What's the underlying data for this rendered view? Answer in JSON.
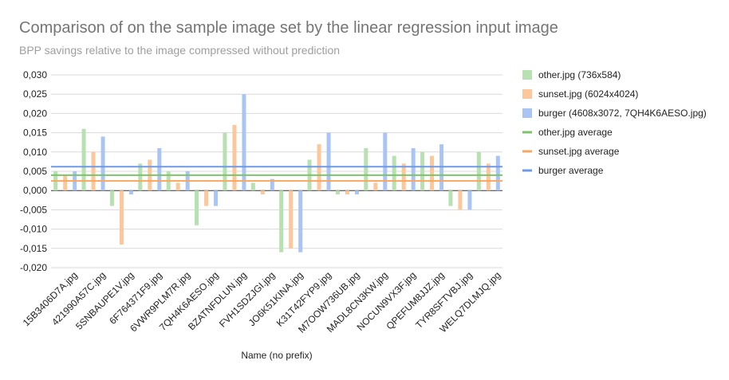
{
  "chart_data": {
    "type": "bar",
    "title": "Comparison of on the sample image set by the linear regression input image",
    "subtitle": "BPP savings relative to the image compressed without prediction",
    "xlabel": "Name (no prefix)",
    "ylabel": "",
    "ylim": [
      -0.02,
      0.03
    ],
    "yticks": [
      "0,030",
      "0,025",
      "0,020",
      "0,015",
      "0,010",
      "0,005",
      "0,000",
      "-0,005",
      "-0,010",
      "-0,015",
      "-0,020"
    ],
    "grid": true,
    "legend_position": "right",
    "categories": [
      "15B3406D7A.jpg",
      "421990A57C.jpg",
      "5SNBAUPE1V.jpg",
      "6F764371F9.jpg",
      "6VWR9PLM7R.jpg",
      "7QH4K6AESO.jpg",
      "BZATNFDLUN.jpg",
      "FVH1SDZJGI.jpg",
      "JO6K51KINA.jpg",
      "K31T42FYP9.jpg",
      "M7OOW736UB.jpg",
      "MADL8CN3KW.jpg",
      "NOCUN9VX3F.jpg",
      "QPEFUM8JJZ.jpg",
      "TYR8SFTVBJ.jpg",
      "WELQ7DLMJQ.jpg"
    ],
    "series": [
      {
        "name": "other.jpg (736x584)",
        "color": "#b7e1b0",
        "values": [
          0.005,
          0.016,
          -0.004,
          0.007,
          0.005,
          -0.009,
          0.015,
          0.002,
          -0.016,
          0.008,
          -0.001,
          0.011,
          0.009,
          0.01,
          -0.004,
          0.01
        ]
      },
      {
        "name": "sunset.jpg (6024x4024)",
        "color": "#fcc89b",
        "values": [
          0.004,
          0.01,
          -0.014,
          0.008,
          0.002,
          -0.004,
          0.017,
          -0.001,
          -0.015,
          0.012,
          -0.001,
          0.002,
          0.007,
          0.009,
          -0.005,
          0.007
        ]
      },
      {
        "name": "burger (4608x3072, 7QH4K6AESO.jpg)",
        "color": "#aac4f4",
        "values": [
          0.005,
          0.014,
          -0.001,
          0.011,
          0.005,
          -0.004,
          0.025,
          0.003,
          -0.016,
          0.015,
          -0.001,
          0.015,
          0.011,
          0.012,
          -0.005,
          0.009
        ]
      }
    ],
    "averages": [
      {
        "name": "other.jpg average",
        "color": "#7cc46a",
        "value": 0.004
      },
      {
        "name": "sunset.jpg average",
        "color": "#f6a860",
        "value": 0.0025
      },
      {
        "name": "burger average",
        "color": "#6e9ae8",
        "value": 0.0062
      }
    ]
  }
}
